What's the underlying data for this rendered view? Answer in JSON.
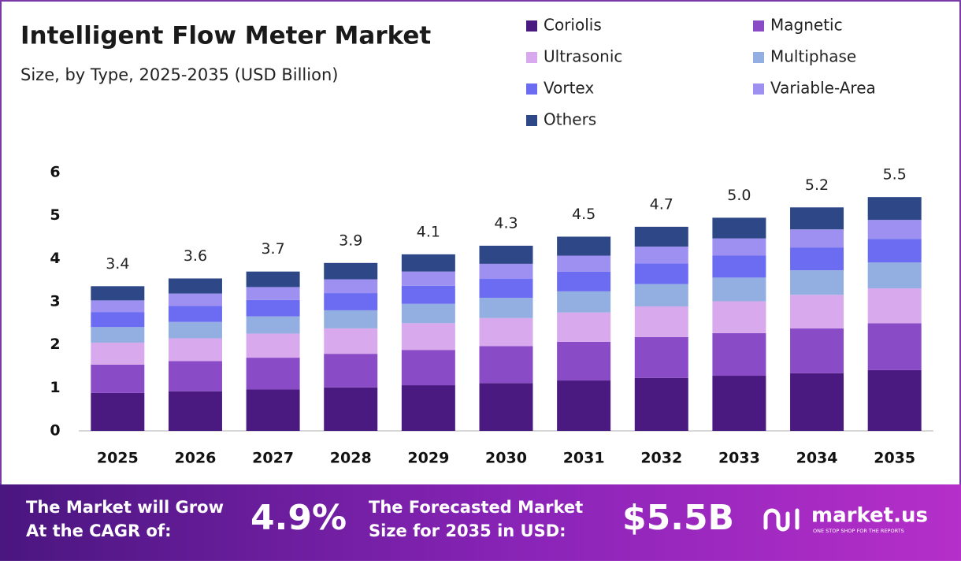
{
  "chart_data": {
    "type": "stacked-bar",
    "title": "Intelligent Flow Meter Market",
    "subtitle": "Size, by Type, 2025-2035 (USD Billion)",
    "categories": [
      "2025",
      "2026",
      "2027",
      "2028",
      "2029",
      "2030",
      "2031",
      "2032",
      "2033",
      "2034",
      "2035"
    ],
    "series": [
      {
        "name": "Coriolis",
        "color": "#4b1a80",
        "values": [
          0.88,
          0.92,
          0.96,
          1.01,
          1.06,
          1.11,
          1.17,
          1.23,
          1.28,
          1.34,
          1.41
        ]
      },
      {
        "name": "Magnetic",
        "color": "#8a4bc6",
        "values": [
          0.66,
          0.7,
          0.74,
          0.78,
          0.82,
          0.86,
          0.9,
          0.95,
          0.99,
          1.04,
          1.09
        ]
      },
      {
        "name": "Ultrasonic",
        "color": "#d9a9ee",
        "values": [
          0.51,
          0.53,
          0.56,
          0.59,
          0.62,
          0.65,
          0.68,
          0.71,
          0.74,
          0.78,
          0.81
        ]
      },
      {
        "name": "Multiphase",
        "color": "#93aee0",
        "values": [
          0.36,
          0.38,
          0.4,
          0.42,
          0.45,
          0.47,
          0.49,
          0.52,
          0.55,
          0.57,
          0.6
        ]
      },
      {
        "name": "Vortex",
        "color": "#6c6cf2",
        "values": [
          0.35,
          0.37,
          0.38,
          0.4,
          0.42,
          0.44,
          0.46,
          0.48,
          0.51,
          0.53,
          0.55
        ]
      },
      {
        "name": "Variable-Area",
        "color": "#9d90f0",
        "values": [
          0.27,
          0.29,
          0.3,
          0.32,
          0.33,
          0.35,
          0.37,
          0.39,
          0.4,
          0.42,
          0.44
        ]
      },
      {
        "name": "Others",
        "color": "#2d4787",
        "values": [
          0.33,
          0.35,
          0.36,
          0.38,
          0.4,
          0.42,
          0.44,
          0.46,
          0.48,
          0.51,
          0.53
        ]
      }
    ],
    "total_labels": [
      "3.4",
      "3.6",
      "3.7",
      "3.9",
      "4.1",
      "4.3",
      "4.5",
      "4.7",
      "5.0",
      "5.2",
      "5.5"
    ],
    "ylim": [
      0,
      6
    ],
    "yticks": [
      0,
      1,
      2,
      3,
      4,
      5,
      6
    ],
    "grid": false
  },
  "footer": {
    "grow_line1": "The Market will Grow",
    "grow_line2": "At the CAGR of:",
    "cagr": "4.9%",
    "size_line1": "The Forecasted Market",
    "size_line2": "Size for 2035 in USD:",
    "size": "$5.5B",
    "brand": "market.us",
    "tagline": "ONE STOP SHOP FOR THE REPORTS"
  }
}
